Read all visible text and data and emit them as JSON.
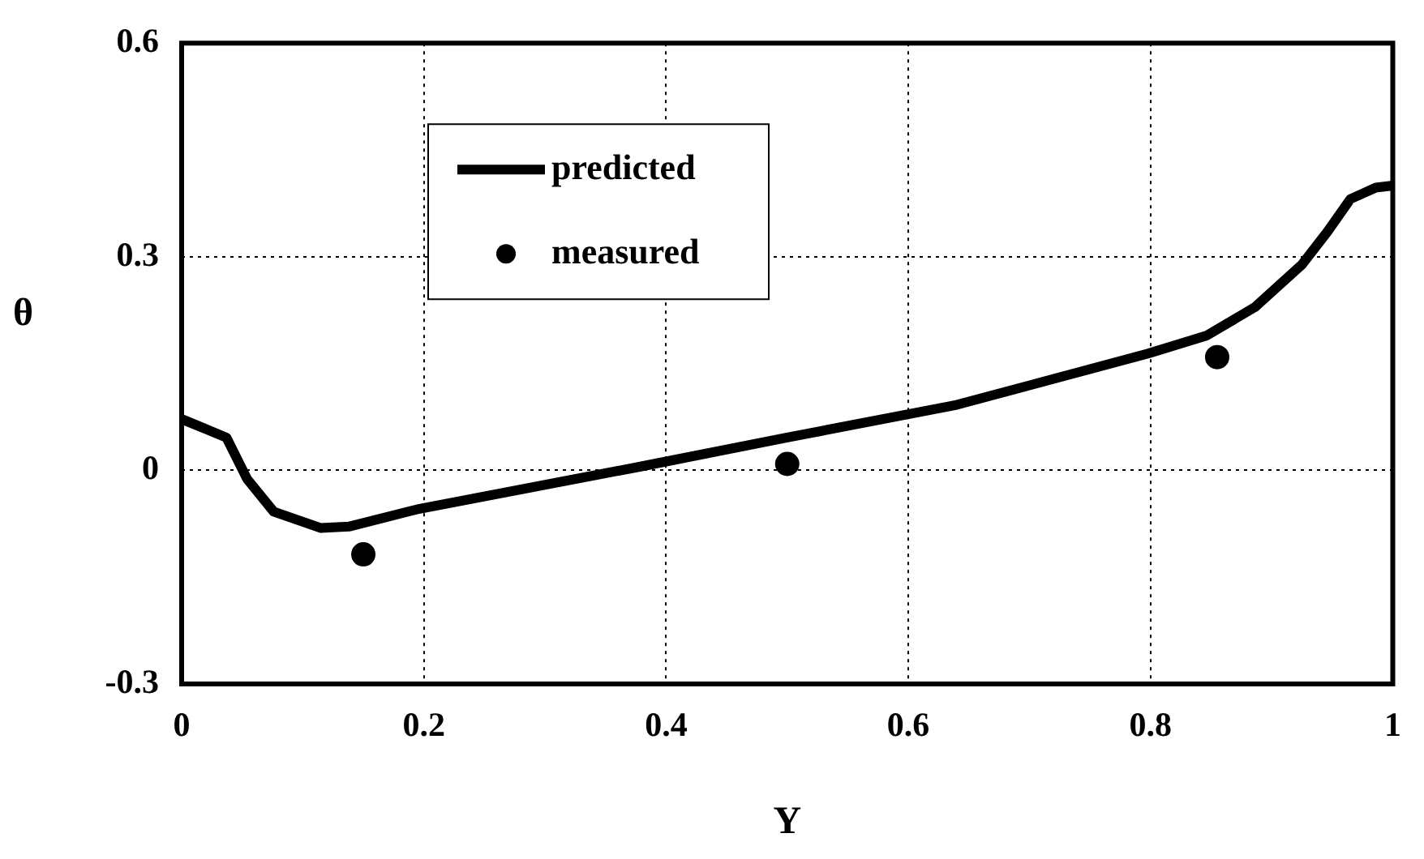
{
  "chart_data": {
    "type": "line",
    "xlabel": "Y",
    "ylabel": "θ",
    "xlim": [
      0,
      1
    ],
    "xticks": [
      0,
      0.2,
      0.4,
      0.6,
      0.8,
      1
    ],
    "ylim": [
      -0.3,
      0.6
    ],
    "yticks": [
      -0.3,
      0,
      0.3,
      0.6
    ],
    "grid": true,
    "legend": "top left",
    "series": [
      {
        "name": "predicted",
        "color": "#000000",
        "marker": "none",
        "line_style": "solid",
        "x": [
          0,
          0.037,
          0.054,
          0.076,
          0.115,
          0.138,
          0.194,
          0.378,
          0.5,
          0.64,
          0.798,
          0.846,
          0.886,
          0.925,
          0.946,
          0.965,
          0.986,
          1
        ],
        "values": [
          0.072,
          0.046,
          -0.012,
          -0.058,
          -0.081,
          -0.079,
          -0.055,
          0.005,
          0.046,
          0.092,
          0.164,
          0.189,
          0.229,
          0.289,
          0.335,
          0.381,
          0.397,
          0.4
        ]
      },
      {
        "name": "measured",
        "type": "scatter",
        "color": "#000000",
        "marker": "circle",
        "x": [
          0.15,
          0.5,
          0.855
        ],
        "values": [
          -0.118,
          0.009,
          0.159
        ]
      }
    ]
  }
}
